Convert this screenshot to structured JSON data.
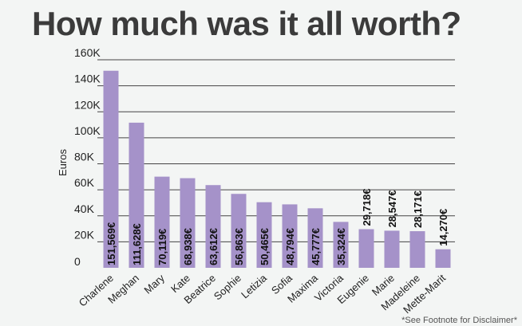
{
  "chart_data": {
    "type": "bar",
    "title": "How much was it all worth?",
    "ylabel": "Euros",
    "xlabel": "",
    "ylim": [
      0,
      160000
    ],
    "yticks": [
      0,
      20000,
      40000,
      60000,
      80000,
      100000,
      120000,
      140000,
      160000
    ],
    "ytick_labels": [
      "0",
      "20K",
      "40K",
      "60K",
      "80K",
      "100K",
      "120K",
      "140K",
      "160K"
    ],
    "grid": true,
    "bar_color": "#a592c9",
    "categories": [
      "Charlene",
      "Meghan",
      "Mary",
      "Kate",
      "Beatrice",
      "Sophie",
      "Letizia",
      "Sofia",
      "Maxima",
      "Victoria",
      "Eugenie",
      "Marie",
      "Madeleine",
      "Mette-Marit"
    ],
    "values": [
      151569,
      111628,
      70119,
      68938,
      63612,
      56863,
      50465,
      48794,
      45777,
      35324,
      29718,
      28547,
      28171,
      14270
    ],
    "value_labels": [
      "151,569€",
      "111,628€",
      "70,119€",
      "68,938€",
      "63,612€",
      "56,863€",
      "50,465€",
      "48,794€",
      "45,777€",
      "35,324€",
      "29,718€",
      "28,547€",
      "28,171€",
      "14,270€"
    ]
  },
  "footnote": "*See Footnote for Disclaimer*"
}
